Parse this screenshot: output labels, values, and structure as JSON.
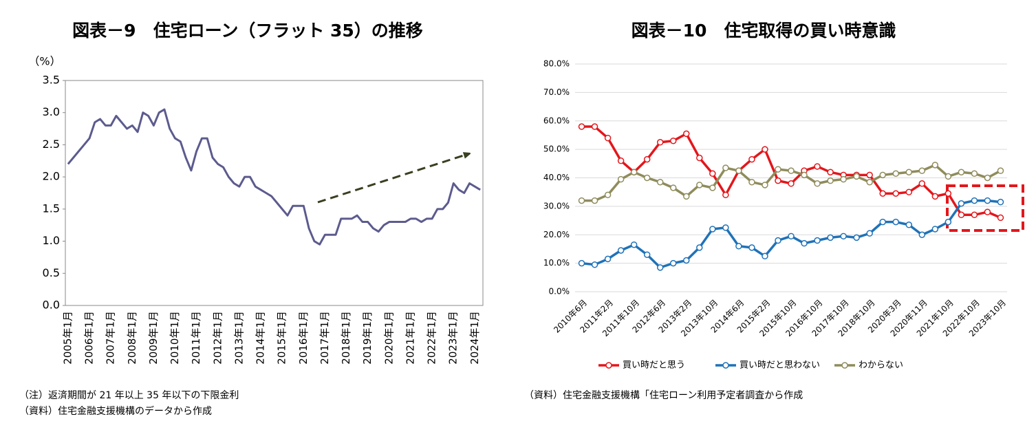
{
  "chart_data": [
    {
      "type": "line",
      "title": "図表－9　住宅ローン（フラット 35）の推移",
      "y_label": "（%）",
      "categories": [
        "2005年1月",
        null,
        null,
        null,
        "2006年1月",
        null,
        null,
        null,
        "2007年1月",
        null,
        null,
        null,
        "2008年1月",
        null,
        null,
        null,
        "2009年1月",
        null,
        null,
        null,
        "2010年1月",
        null,
        null,
        null,
        "2011年1月",
        null,
        null,
        null,
        "2012年1月",
        null,
        null,
        null,
        "2013年1月",
        null,
        null,
        null,
        "2014年1月",
        null,
        null,
        null,
        "2015年1月",
        null,
        null,
        null,
        "2016年1月",
        null,
        null,
        null,
        "2017年1月",
        null,
        null,
        null,
        "2018年1月",
        null,
        null,
        null,
        "2019年1月",
        null,
        null,
        null,
        "2020年1月",
        null,
        null,
        null,
        "2021年1月",
        null,
        null,
        null,
        "2022年1月",
        null,
        null,
        null,
        "2023年1月",
        null,
        null,
        null,
        "2024年1月",
        null
      ],
      "values": [
        2.2,
        2.3,
        2.4,
        2.5,
        2.6,
        2.85,
        2.9,
        2.8,
        2.8,
        2.95,
        2.85,
        2.75,
        2.8,
        2.7,
        3.0,
        2.95,
        2.8,
        3.0,
        3.05,
        2.75,
        2.6,
        2.55,
        2.3,
        2.1,
        2.4,
        2.6,
        2.6,
        2.3,
        2.2,
        2.15,
        2.0,
        1.9,
        1.85,
        2.0,
        2.0,
        1.85,
        1.8,
        1.75,
        1.7,
        1.6,
        1.5,
        1.4,
        1.55,
        1.55,
        1.55,
        1.2,
        1.0,
        0.95,
        1.1,
        1.1,
        1.1,
        1.35,
        1.35,
        1.35,
        1.4,
        1.3,
        1.3,
        1.2,
        1.15,
        1.25,
        1.3,
        1.3,
        1.3,
        1.3,
        1.35,
        1.35,
        1.3,
        1.35,
        1.35,
        1.5,
        1.5,
        1.6,
        1.9,
        1.8,
        1.75,
        1.9,
        1.85,
        1.8
      ],
      "color": "#5c5b8e",
      "ylim": [
        0,
        3.5
      ],
      "yticks": [
        {
          "value": 0,
          "label": "0.0"
        },
        0.5,
        {
          "value": 1,
          "label": "1.0"
        },
        1.5,
        {
          "value": 2,
          "label": "2.0"
        },
        2.5,
        {
          "value": 3,
          "label": "3.0"
        },
        3.5
      ],
      "grid": false,
      "notes": [
        "（注）返済期間が 21 年以上 35 年以下の下限金利",
        "（資料）住宅金融支援機構のデータから作成"
      ]
    },
    {
      "type": "line",
      "title": "図表－10　住宅取得の買い時意識",
      "categories": [
        "2010年6月",
        null,
        "2011年2月",
        null,
        "2011年10月",
        null,
        "2012年6月",
        null,
        "2013年2月",
        null,
        "2013年10月",
        null,
        "2014年6月",
        null,
        "2015年2月",
        null,
        "2015年10月",
        null,
        "2016年10月",
        null,
        "2017年10月",
        null,
        "2018年10月",
        null,
        "2020年3月",
        null,
        "2020年11月",
        null,
        "2021年10月",
        null,
        "2022年10月",
        null,
        "2023年10月"
      ],
      "series": [
        {
          "name": "買い時だと思う",
          "color": "#e3161b",
          "values": [
            58,
            58,
            54,
            46,
            42,
            46.5,
            52.5,
            53,
            55.5,
            47,
            41.5,
            34,
            42.5,
            46.5,
            50,
            39,
            38,
            42.5,
            44,
            42,
            41,
            41,
            41,
            34.5,
            34.5,
            35,
            38,
            33.5,
            34.5,
            27,
            27,
            28,
            26
          ]
        },
        {
          "name": "買い時だと思わない",
          "color": "#1f72b8",
          "values": [
            10,
            9.5,
            11.5,
            14.5,
            16.5,
            13,
            8.5,
            10,
            11,
            15.5,
            22,
            22.5,
            16,
            15.5,
            12.5,
            18,
            19.5,
            17,
            18,
            19,
            19.5,
            19,
            20.5,
            24.5,
            24.5,
            23.5,
            20,
            22,
            24.5,
            31,
            32,
            32,
            31.5
          ]
        },
        {
          "name": "わからない",
          "color": "#8f8c5c",
          "values": [
            32,
            32,
            34,
            39.5,
            42,
            40,
            38.5,
            36.5,
            33.5,
            37.5,
            36.5,
            43.5,
            42.5,
            38.5,
            37.5,
            43,
            42.5,
            41,
            38,
            39,
            39.5,
            40.5,
            38.5,
            41,
            41.5,
            42,
            42.5,
            44.5,
            40.5,
            42,
            41.5,
            40,
            42.5
          ]
        }
      ],
      "markers": true,
      "ylim": [
        0,
        80
      ],
      "yticks": [
        {
          "value": 0,
          "label": "0.0%"
        },
        {
          "value": 10,
          "label": "10.0%"
        },
        {
          "value": 20,
          "label": "20.0%"
        },
        {
          "value": 30,
          "label": "30.0%"
        },
        {
          "value": 40,
          "label": "40.0%"
        },
        {
          "value": 50,
          "label": "50.0%"
        },
        {
          "value": 60,
          "label": "60.0%"
        },
        {
          "value": 70,
          "label": "70.0%"
        },
        {
          "value": 80,
          "label": "80.0%"
        }
      ],
      "grid": true,
      "legend": "bottom",
      "notes": [
        "（資料）住宅金融支援機構「住宅ローン利用予定者調査から作成"
      ]
    }
  ]
}
